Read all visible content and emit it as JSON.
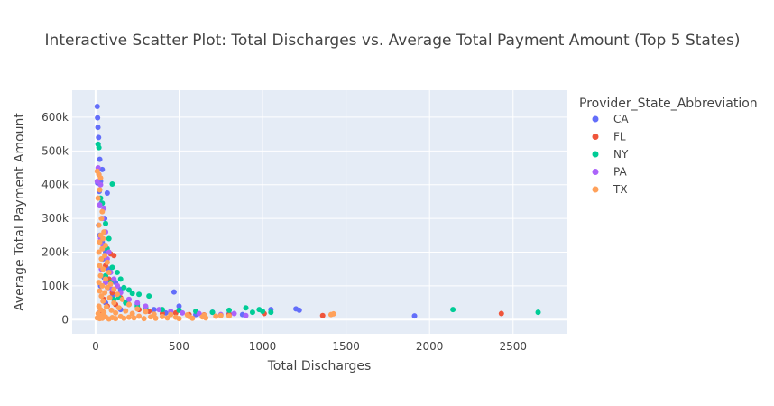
{
  "chart_data": {
    "type": "scatter",
    "title": "Interactive Scatter Plot: Total Discharges vs. Average Total Payment Amount (Top 5 States)",
    "xlabel": "Total Discharges",
    "ylabel": "Average Total Payment Amount",
    "xlim": [
      -140,
      2820
    ],
    "ylim": [
      -42000,
      680000
    ],
    "x_ticks": [
      0,
      500,
      1000,
      1500,
      2000,
      2500
    ],
    "x_tick_labels": [
      "0",
      "500",
      "1000",
      "1500",
      "2000",
      "2500"
    ],
    "y_ticks": [
      0,
      100000,
      200000,
      300000,
      400000,
      500000,
      600000
    ],
    "y_tick_labels": [
      "0",
      "100k",
      "200k",
      "300k",
      "400k",
      "500k",
      "600k"
    ],
    "grid": true,
    "legend": {
      "title": "Provider_State_Abbreviation",
      "placement": "right"
    },
    "series": [
      {
        "name": "CA",
        "color": "#636efa",
        "points": [
          [
            10,
            632000
          ],
          [
            12,
            598000
          ],
          [
            14,
            570000
          ],
          [
            18,
            540000
          ],
          [
            15,
            520000
          ],
          [
            25,
            475000
          ],
          [
            40,
            445000
          ],
          [
            20,
            430000
          ],
          [
            30,
            410000
          ],
          [
            12,
            405000
          ],
          [
            22,
            380000
          ],
          [
            70,
            375000
          ],
          [
            35,
            345000
          ],
          [
            55,
            300000
          ],
          [
            18,
            280000
          ],
          [
            25,
            250000
          ],
          [
            40,
            230000
          ],
          [
            60,
            200000
          ],
          [
            45,
            180000
          ],
          [
            80,
            150000
          ],
          [
            50,
            125000
          ],
          [
            120,
            110000
          ],
          [
            30,
            100000
          ],
          [
            150,
            90000
          ],
          [
            200,
            60000
          ],
          [
            250,
            45000
          ],
          [
            300,
            35000
          ],
          [
            350,
            30000
          ],
          [
            470,
            82000
          ],
          [
            500,
            40000
          ],
          [
            420,
            20000
          ],
          [
            600,
            15000
          ],
          [
            700,
            22000
          ],
          [
            800,
            18000
          ],
          [
            880,
            15000
          ],
          [
            1050,
            30000
          ],
          [
            1200,
            32000
          ],
          [
            1220,
            28000
          ],
          [
            1910,
            11000
          ],
          [
            100,
            70000
          ],
          [
            75,
            95000
          ],
          [
            150,
            30000
          ],
          [
            60,
            50000
          ],
          [
            20,
            20000
          ]
        ]
      },
      {
        "name": "FL",
        "color": "#ef553b",
        "points": [
          [
            90,
            195000
          ],
          [
            110,
            190000
          ],
          [
            60,
            160000
          ],
          [
            80,
            120000
          ],
          [
            130,
            100000
          ],
          [
            100,
            80000
          ],
          [
            150,
            65000
          ],
          [
            200,
            45000
          ],
          [
            260,
            30000
          ],
          [
            320,
            25000
          ],
          [
            400,
            18000
          ],
          [
            480,
            20000
          ],
          [
            560,
            15000
          ],
          [
            650,
            14000
          ],
          [
            800,
            15000
          ],
          [
            1010,
            18000
          ],
          [
            1360,
            12000
          ],
          [
            2430,
            18000
          ],
          [
            50,
            60000
          ],
          [
            70,
            40000
          ],
          [
            40,
            25000
          ],
          [
            120,
            45000
          ]
        ]
      },
      {
        "name": "NY",
        "color": "#00cc96",
        "points": [
          [
            15,
            520000
          ],
          [
            20,
            510000
          ],
          [
            100,
            402000
          ],
          [
            40,
            345000
          ],
          [
            30,
            360000
          ],
          [
            60,
            285000
          ],
          [
            80,
            240000
          ],
          [
            50,
            220000
          ],
          [
            70,
            210000
          ],
          [
            100,
            155000
          ],
          [
            130,
            140000
          ],
          [
            150,
            120000
          ],
          [
            170,
            95000
          ],
          [
            200,
            88000
          ],
          [
            220,
            78000
          ],
          [
            260,
            75000
          ],
          [
            320,
            70000
          ],
          [
            180,
            50000
          ],
          [
            250,
            40000
          ],
          [
            300,
            35000
          ],
          [
            400,
            30000
          ],
          [
            500,
            28000
          ],
          [
            600,
            25000
          ],
          [
            700,
            22000
          ],
          [
            800,
            28000
          ],
          [
            900,
            35000
          ],
          [
            940,
            22000
          ],
          [
            980,
            30000
          ],
          [
            1000,
            25000
          ],
          [
            1050,
            22000
          ],
          [
            2140,
            30000
          ],
          [
            2650,
            22000
          ],
          [
            110,
            60000
          ],
          [
            90,
            110000
          ],
          [
            60,
            130000
          ],
          [
            140,
            65000
          ]
        ]
      },
      {
        "name": "PA",
        "color": "#ab63fa",
        "points": [
          [
            15,
            450000
          ],
          [
            10,
            410000
          ],
          [
            30,
            400000
          ],
          [
            25,
            340000
          ],
          [
            50,
            330000
          ],
          [
            40,
            300000
          ],
          [
            60,
            260000
          ],
          [
            30,
            240000
          ],
          [
            45,
            220000
          ],
          [
            80,
            200000
          ],
          [
            70,
            180000
          ],
          [
            90,
            140000
          ],
          [
            110,
            120000
          ],
          [
            130,
            100000
          ],
          [
            60,
            110000
          ],
          [
            150,
            80000
          ],
          [
            200,
            60000
          ],
          [
            250,
            50000
          ],
          [
            300,
            40000
          ],
          [
            380,
            30000
          ],
          [
            450,
            25000
          ],
          [
            520,
            20000
          ],
          [
            620,
            18000
          ],
          [
            750,
            15000
          ],
          [
            830,
            18000
          ],
          [
            900,
            12000
          ],
          [
            35,
            150000
          ],
          [
            100,
            90000
          ]
        ]
      },
      {
        "name": "TX",
        "color": "#ffa15a",
        "points": [
          [
            10,
            440000
          ],
          [
            20,
            430000
          ],
          [
            30,
            420000
          ],
          [
            25,
            385000
          ],
          [
            15,
            360000
          ],
          [
            40,
            320000
          ],
          [
            35,
            300000
          ],
          [
            20,
            280000
          ],
          [
            50,
            260000
          ],
          [
            30,
            250000
          ],
          [
            45,
            240000
          ],
          [
            25,
            230000
          ],
          [
            60,
            220000
          ],
          [
            40,
            210000
          ],
          [
            20,
            200000
          ],
          [
            55,
            190000
          ],
          [
            35,
            180000
          ],
          [
            70,
            170000
          ],
          [
            25,
            160000
          ],
          [
            45,
            150000
          ],
          [
            80,
            140000
          ],
          [
            30,
            130000
          ],
          [
            60,
            120000
          ],
          [
            20,
            110000
          ],
          [
            90,
            105000
          ],
          [
            40,
            100000
          ],
          [
            70,
            95000
          ],
          [
            110,
            90000
          ],
          [
            25,
            85000
          ],
          [
            55,
            80000
          ],
          [
            130,
            75000
          ],
          [
            35,
            70000
          ],
          [
            85,
            65000
          ],
          [
            160,
            60000
          ],
          [
            45,
            55000
          ],
          [
            110,
            50000
          ],
          [
            200,
            45000
          ],
          [
            20,
            40000
          ],
          [
            65,
            38000
          ],
          [
            140,
            35000
          ],
          [
            250,
            32000
          ],
          [
            30,
            30000
          ],
          [
            95,
            28000
          ],
          [
            180,
            26000
          ],
          [
            300,
            24000
          ],
          [
            50,
            22000
          ],
          [
            120,
            20000
          ],
          [
            220,
            18000
          ],
          [
            350,
            16000
          ],
          [
            450,
            15000
          ],
          [
            550,
            14000
          ],
          [
            650,
            13000
          ],
          [
            750,
            12000
          ],
          [
            800,
            11000
          ],
          [
            15,
            18000
          ],
          [
            35,
            12000
          ],
          [
            60,
            8000
          ],
          [
            100,
            6000
          ],
          [
            150,
            9000
          ],
          [
            200,
            7000
          ],
          [
            260,
            10000
          ],
          [
            330,
            8000
          ],
          [
            400,
            9000
          ],
          [
            480,
            7000
          ],
          [
            560,
            9000
          ],
          [
            640,
            8000
          ],
          [
            720,
            10000
          ],
          [
            1410,
            15000
          ],
          [
            1425,
            17000
          ],
          [
            10,
            5000
          ],
          [
            25,
            3000
          ],
          [
            40,
            4000
          ],
          [
            80,
            2000
          ],
          [
            120,
            3000
          ],
          [
            170,
            4000
          ],
          [
            230,
            5000
          ],
          [
            290,
            3000
          ],
          [
            360,
            4000
          ],
          [
            430,
            5000
          ],
          [
            500,
            3000
          ],
          [
            580,
            4000
          ],
          [
            660,
            5000
          ]
        ]
      }
    ]
  }
}
